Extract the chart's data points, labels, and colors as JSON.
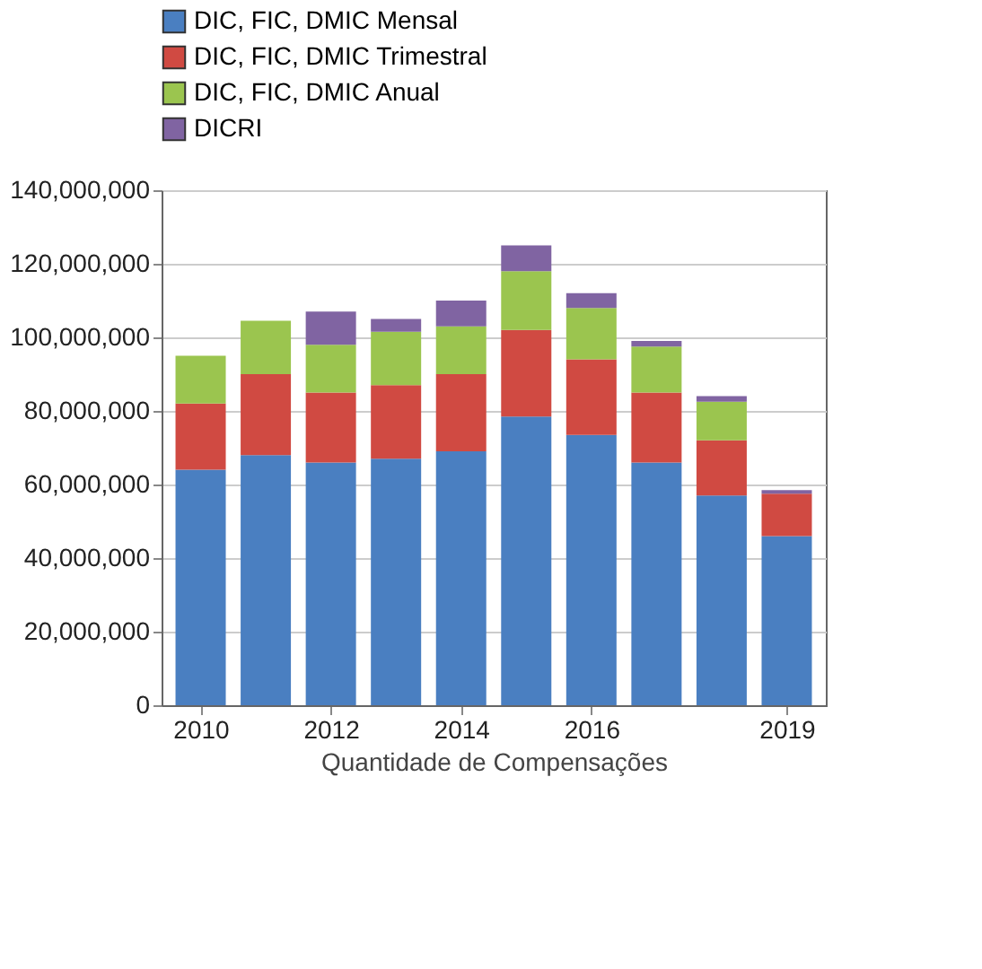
{
  "chart_data": {
    "type": "bar",
    "stacked": true,
    "xlabel": "Quantidade de Compensações",
    "x": [
      2010,
      2011,
      2012,
      2013,
      2014,
      2015,
      2016,
      2017,
      2018,
      2019
    ],
    "xlim": [
      2009.4,
      2019.6
    ],
    "xticks": [
      2010,
      2012,
      2014,
      2016,
      2019
    ],
    "ylim": [
      0,
      140000000
    ],
    "yticks": [
      0,
      {
        "value": 20000000,
        "label": "20,000,000"
      },
      {
        "value": 40000000,
        "label": "40,000,000"
      },
      {
        "value": 60000000,
        "label": "60,000,000"
      },
      {
        "value": 80000000,
        "label": "80,000,000"
      },
      {
        "value": 100000000,
        "label": "100,000,000"
      },
      {
        "value": 120000000,
        "label": "120,000,000"
      },
      {
        "value": 140000000,
        "label": "140,000,000"
      }
    ],
    "grid": "y",
    "legend": "top",
    "series": [
      {
        "name": "DIC, FIC, DMIC Mensal",
        "color": "#4a7fc1",
        "values": [
          64000000,
          68000000,
          66000000,
          67000000,
          69000000,
          78500000,
          73500000,
          66000000,
          57000000,
          46000000
        ]
      },
      {
        "name": "DIC, FIC, DMIC Trimestral",
        "color": "#d04a42",
        "values": [
          18000000,
          22000000,
          19000000,
          20000000,
          21000000,
          23500000,
          20500000,
          19000000,
          15000000,
          11500000
        ]
      },
      {
        "name": "DIC, FIC, DMIC Anual",
        "color": "#9bc54f",
        "values": [
          13000000,
          14500000,
          13000000,
          14500000,
          13000000,
          16000000,
          14000000,
          12500000,
          10500000,
          0
        ]
      },
      {
        "name": "DICRI",
        "color": "#8064a2",
        "values": [
          0,
          0,
          9000000,
          3500000,
          7000000,
          7000000,
          4000000,
          1500000,
          1500000,
          1000000
        ]
      }
    ]
  }
}
